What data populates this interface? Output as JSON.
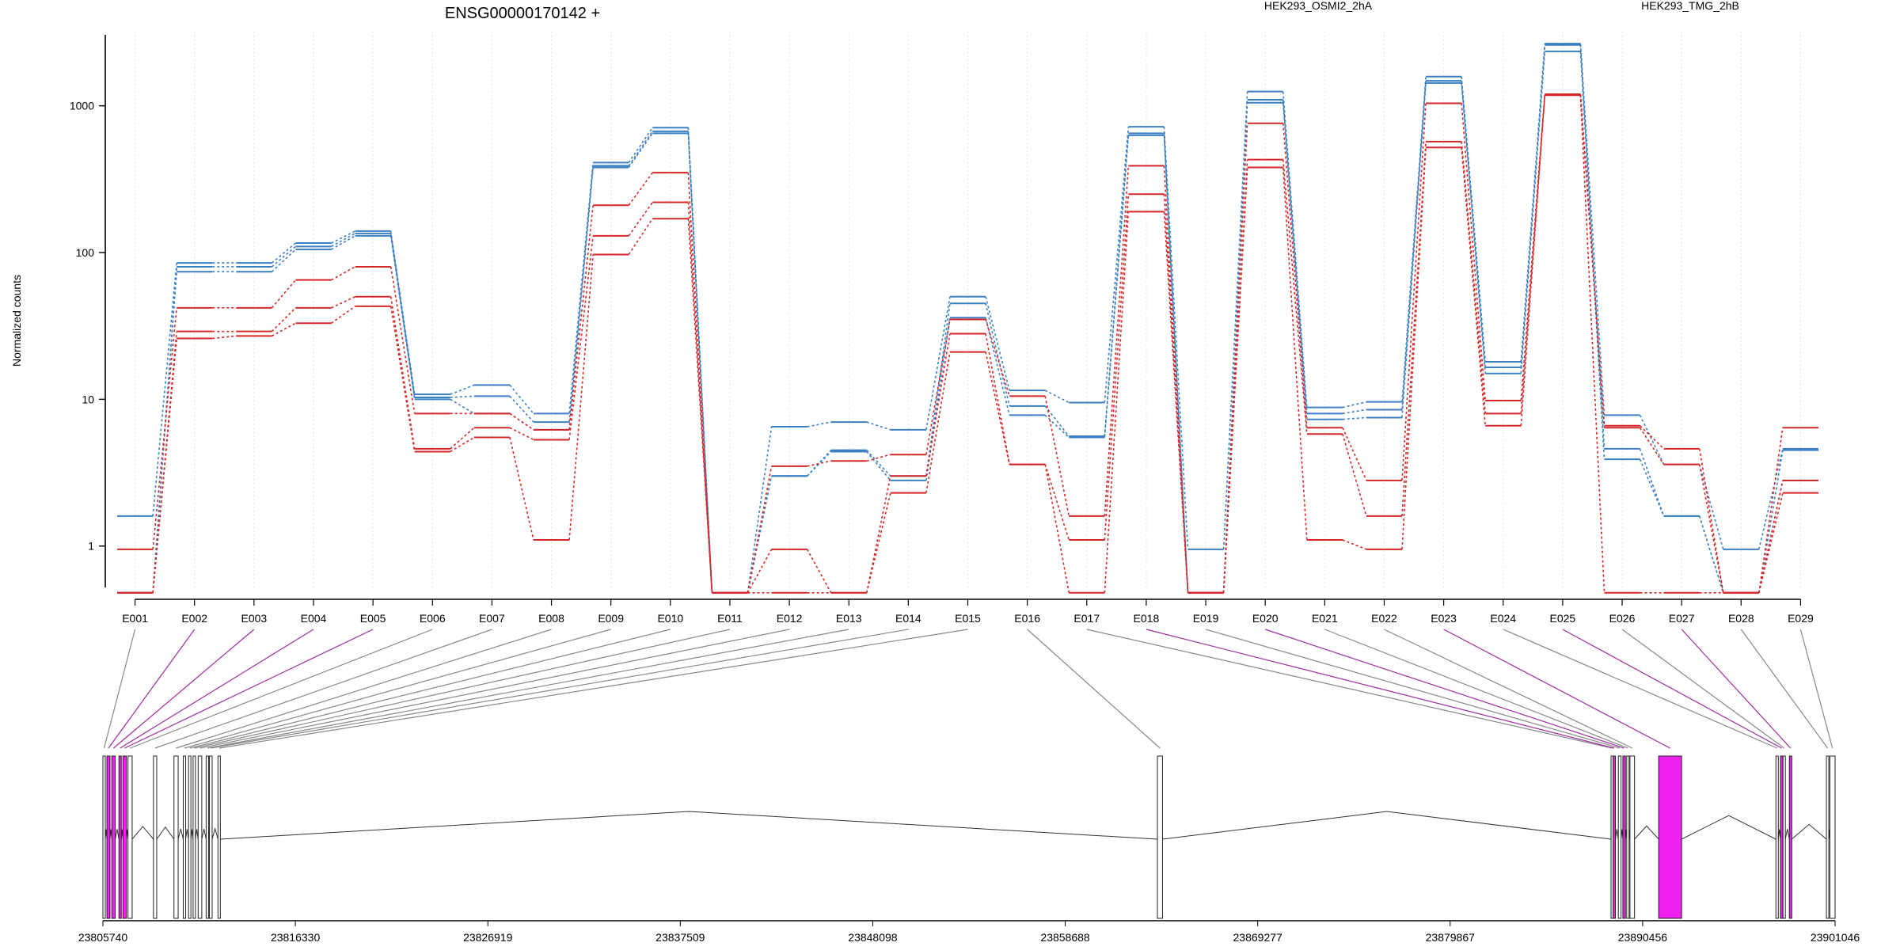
{
  "chart_data": {
    "type": "line",
    "title": "ENSG00000170142 +",
    "xlabel": "",
    "ylabel": "Normalized counts",
    "yscale": "log",
    "ylim": [
      0.45,
      3200
    ],
    "yticks": [
      1,
      10,
      100,
      1000
    ],
    "ytick_labels": [
      "1",
      "10",
      "100",
      "1000"
    ],
    "grid": "vertical dotted lines at exon centers",
    "legend": {
      "placement": "top",
      "entries": [
        {
          "label": "HEK293_OSMI2_2hA",
          "color": "#d62728"
        },
        {
          "label": "HEK293_TMG_2hB",
          "color": "#3a7fc1"
        }
      ]
    },
    "categories": [
      "E001",
      "E002",
      "E003",
      "E004",
      "E005",
      "E006",
      "E007",
      "E008",
      "E009",
      "E010",
      "E011",
      "E012",
      "E013",
      "E014",
      "E015",
      "E016",
      "E017",
      "E018",
      "E019",
      "E020",
      "E021",
      "E022",
      "E023",
      "E024",
      "E025",
      "E026",
      "E027",
      "E028",
      "E029"
    ],
    "series": [
      {
        "group": "HEK293_TMG_2hB",
        "color": "#3a7fc1",
        "values": [
          1.6,
          85,
          85,
          116,
          140,
          10.8,
          12.5,
          8.0,
          410,
          710,
          0.48,
          6.5,
          7.0,
          6.2,
          50,
          11.5,
          9.5,
          720,
          0.95,
          1250,
          8.8,
          9.6,
          1580,
          18.0,
          2650,
          7.8,
          3.6,
          0.95,
          4.6
        ]
      },
      {
        "group": "HEK293_TMG_2hB",
        "color": "#3a7fc1",
        "values": [
          0.48,
          80,
          80,
          110,
          135,
          10.3,
          10.5,
          7.0,
          390,
          670,
          0.48,
          3.0,
          4.5,
          3.0,
          45,
          9.0,
          5.6,
          650,
          0.48,
          1100,
          8.0,
          8.5,
          1480,
          16.5,
          2600,
          4.6,
          1.6,
          0.48,
          4.5
        ]
      },
      {
        "group": "HEK293_TMG_2hB",
        "color": "#3a7fc1",
        "values": [
          0.48,
          74,
          74,
          105,
          130,
          10.0,
          8.0,
          6.2,
          380,
          650,
          0.48,
          3.0,
          4.4,
          2.8,
          36,
          7.8,
          5.5,
          630,
          0.48,
          1050,
          7.3,
          7.5,
          1430,
          15.0,
          2350,
          3.9,
          1.6,
          0.48,
          2.8
        ]
      },
      {
        "group": "HEK293_OSMI2_2hA",
        "color": "#d62728",
        "values": [
          0.95,
          42,
          42,
          65,
          80,
          8.0,
          8.0,
          6.2,
          210,
          350,
          0.48,
          3.5,
          3.8,
          4.2,
          35,
          10.5,
          1.6,
          390,
          0.48,
          760,
          6.4,
          2.8,
          1040,
          9.8,
          1200,
          6.6,
          4.6,
          0.48,
          6.4
        ]
      },
      {
        "group": "HEK293_OSMI2_2hA",
        "color": "#d62728",
        "values": [
          0.48,
          29,
          29,
          42,
          50,
          4.6,
          6.4,
          5.3,
          130,
          220,
          0.48,
          0.95,
          0.48,
          3.0,
          28,
          3.6,
          1.1,
          250,
          0.48,
          430,
          5.8,
          1.6,
          570,
          8.0,
          1190,
          6.4,
          3.6,
          0.48,
          2.8
        ]
      },
      {
        "group": "HEK293_OSMI2_2hA",
        "color": "#d62728",
        "values": [
          0.48,
          26,
          27,
          33,
          43,
          4.4,
          5.5,
          1.1,
          97,
          170,
          0.48,
          0.48,
          0.48,
          2.3,
          21,
          3.6,
          0.48,
          190,
          0.48,
          380,
          1.1,
          0.95,
          520,
          6.6,
          1180,
          0.48,
          0.48,
          0.48,
          2.3
        ]
      }
    ],
    "exon_links": {
      "E001": "grey",
      "E002": "purple",
      "E003": "purple",
      "E004": "purple",
      "E005": "purple",
      "E006": "grey",
      "E007": "grey",
      "E008": "grey",
      "E009": "grey",
      "E010": "grey",
      "E011": "grey",
      "E012": "grey",
      "E013": "grey",
      "E014": "grey",
      "E015": "grey",
      "E016": "grey",
      "E017": "grey",
      "E018": "purple",
      "E019": "grey",
      "E020": "purple",
      "E021": "grey",
      "E022": "grey",
      "E023": "purple",
      "E024": "grey",
      "E025": "purple",
      "E026": "grey",
      "E027": "purple",
      "E028": "grey",
      "E029": "grey"
    },
    "gene_model": {
      "coordinate_ticks": [
        "23805740",
        "23816330",
        "23826919",
        "23837509",
        "23848098",
        "23858688",
        "23869277",
        "23879867",
        "23890456",
        "23901046"
      ],
      "xlim": [
        23805740,
        23901046
      ],
      "exon_starts": [
        23805740,
        23805960,
        23806230,
        23806620,
        23806840,
        23807120,
        23808520,
        23809650,
        23810160,
        23810450,
        23810700,
        23810980,
        23811420,
        23811600,
        23812070,
        23863760,
        23888720,
        23888830,
        23889120,
        23889370,
        23889580,
        23889760,
        23891340,
        23897790,
        23898040,
        23898180,
        23898530,
        23900570,
        23900760
      ],
      "exon_ends": [
        23805810,
        23806130,
        23806420,
        23806720,
        23807030,
        23807350,
        23808700,
        23809880,
        23810280,
        23810560,
        23810830,
        23811180,
        23811540,
        23811750,
        23812190,
        23864040,
        23888790,
        23888950,
        23889270,
        23889510,
        23889680,
        23890010,
        23892600,
        23897900,
        23898120,
        23898260,
        23898640,
        23900700,
        23901046
      ],
      "highlight_color": "#ee22ee"
    }
  }
}
